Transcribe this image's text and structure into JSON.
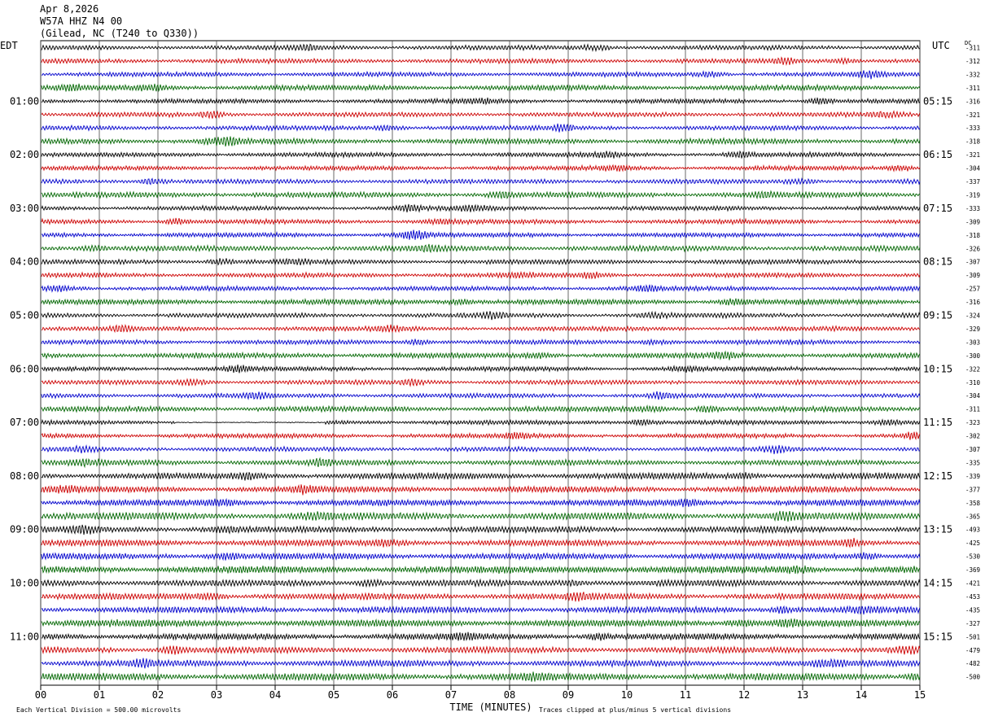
{
  "header": {
    "date": "Apr 8,2026",
    "station": "W57A HHZ N4 00",
    "location": "(Gilead, NC (T240 to Q330))"
  },
  "colors": {
    "trace_cycle": [
      "#000000",
      "#cc0000",
      "#0000cc",
      "#006600"
    ],
    "gridline": "#000000"
  },
  "chart_data": {
    "type": "line",
    "xlabel": "TIME (MINUTES)",
    "x_ticks": [
      "00",
      "01",
      "02",
      "03",
      "04",
      "05",
      "06",
      "07",
      "08",
      "09",
      "10",
      "11",
      "12",
      "13",
      "14",
      "15"
    ],
    "xlim": [
      0,
      15
    ],
    "left_axis_label": "EDT",
    "right_axis_label": "UTC",
    "dc_label": "DC",
    "left_time_labels": [
      "01:00",
      "02:00",
      "03:00",
      "04:00",
      "05:00",
      "06:00",
      "07:00",
      "08:00",
      "09:00",
      "10:00",
      "11:00"
    ],
    "right_time_labels": [
      "05:15",
      "06:15",
      "07:15",
      "08:15",
      "09:15",
      "10:15",
      "11:15",
      "12:15",
      "13:15",
      "14:15",
      "15:15"
    ],
    "dc_offsets": [
      -311,
      -312,
      -332,
      -311,
      -316,
      -321,
      -333,
      -318,
      -321,
      -304,
      -337,
      -319,
      -333,
      -309,
      -318,
      -326,
      -307,
      -309,
      -257,
      -316,
      -324,
      -329,
      -303,
      -300,
      -322,
      -310,
      -304,
      -311,
      -323,
      -302,
      -307,
      -335,
      -339,
      -377,
      -358,
      -365,
      -493,
      -425,
      -530,
      -369,
      -421,
      -453,
      -435,
      -327,
      -501,
      -479,
      -482,
      -500
    ],
    "footer_scale": "Each Vertical Division =  500.00 microvolts",
    "footer_clip": "Traces clipped at plus/minus 5 vertical divisions",
    "grid": true
  }
}
